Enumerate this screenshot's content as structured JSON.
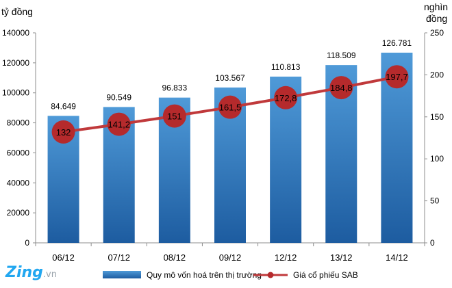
{
  "axis_labels": {
    "left_unit": "tỷ đồng",
    "right_unit_line1": "nghìn",
    "right_unit_line2": "đồng"
  },
  "watermark": {
    "brand": "Zing",
    "suffix": ".vn"
  },
  "colors": {
    "bar_top": "#4f9ad8",
    "bar_bottom": "#1d5ca0",
    "line": "#c0393b",
    "marker": "#b52a2c"
  },
  "chart_data": {
    "type": "bar",
    "categories": [
      "06/12",
      "07/12",
      "08/12",
      "09/12",
      "12/12",
      "13/12",
      "14/12"
    ],
    "series": [
      {
        "name": "Quy mô vốn  hoá trên thị trường",
        "chart": "bar",
        "axis": "left",
        "values": [
          84649,
          90549,
          96833,
          103567,
          110813,
          118509,
          126781
        ],
        "labels": [
          "84.649",
          "90.549",
          "96.833",
          "103.567",
          "110.813",
          "118.509",
          "126.781"
        ]
      },
      {
        "name": "Giá cổ phiếu SAB",
        "chart": "line",
        "axis": "right",
        "values": [
          132,
          141.2,
          151,
          161.5,
          172.8,
          184.8,
          197.7
        ],
        "labels": [
          "132",
          "141,2",
          "151",
          "161,5",
          "172,8",
          "184,8",
          "197,7"
        ]
      }
    ],
    "y_left": {
      "range": [
        0,
        140000
      ],
      "ticks": [
        "0",
        "20000",
        "40000",
        "60000",
        "80000",
        "100000",
        "120000",
        "140000"
      ]
    },
    "y_right": {
      "range": [
        0,
        250
      ],
      "ticks": [
        "0",
        "50",
        "100",
        "150",
        "200",
        "250"
      ]
    },
    "grid": false,
    "legend_position": "bottom"
  }
}
